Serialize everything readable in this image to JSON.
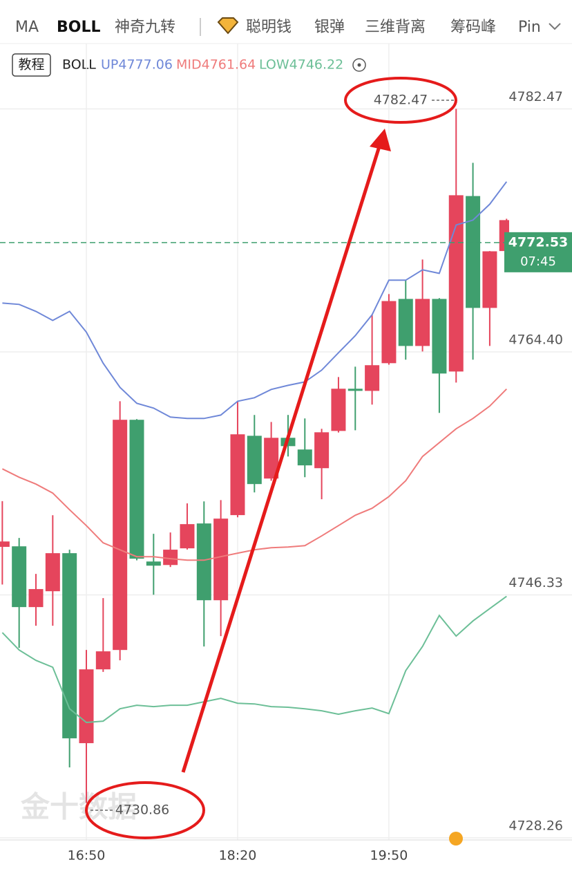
{
  "tabs": [
    "MA",
    "BOLL",
    "神奇九转",
    "聪明钱",
    "银弹",
    "三维背离",
    "筹码峰",
    "Pin"
  ],
  "indicator_row": {
    "tutorial": "教程",
    "indicator": "BOLL"
  },
  "chart_data": {
    "type": "candlestick",
    "categories": [
      null,
      null,
      null,
      null,
      null,
      "16:50",
      null,
      null,
      null,
      null,
      null,
      null,
      null,
      null,
      "18:20",
      null,
      null,
      null,
      null,
      null,
      null,
      null,
      null,
      "19:50",
      null,
      null,
      null,
      null,
      null,
      null,
      null
    ],
    "open": [
      4749.9,
      4749.94,
      4745.42,
      4746.6,
      4749.43,
      4735.3,
      4740.79,
      4742.23,
      4759.35,
      4748.81,
      4748.55,
      4749.79,
      4751.64,
      4745.93,
      4752.26,
      4758.16,
      4754.98,
      4758.01,
      4757.14,
      4755.75,
      4758.52,
      4761.66,
      4761.5,
      4763.56,
      4768.34,
      4764.84,
      4768.34,
      4762.94,
      4775.99,
      4767.67,
      4771.9
    ],
    "high": [
      4753.3,
      4750.56,
      4747.89,
      4752.25,
      4749.69,
      4742.23,
      4746.09,
      4760.73,
      4759.4,
      4750.87,
      4750.97,
      4753.13,
      4753.28,
      4753.38,
      4760.73,
      4759.71,
      4759.19,
      4759.71,
      4759.45,
      4758.68,
      4762.53,
      4763.3,
      4767.16,
      4768.7,
      4769.73,
      4771.27,
      4768.4,
      4782.47,
      4778.46,
      4771.9,
      4774.3
    ],
    "low": [
      4747.1,
      4742.39,
      4744.03,
      4744.03,
      4733.5,
      4730.86,
      4740.6,
      4741.46,
      4748.9,
      4746.34,
      4748.4,
      4749.7,
      4742.49,
      4743.26,
      4752.1,
      4753.95,
      4754.82,
      4756.62,
      4755.08,
      4753.44,
      4758.4,
      4758.57,
      4760.48,
      4763.45,
      4763.82,
      4764.43,
      4759.86,
      4762.12,
      4763.82,
      4764.84,
      4771.9
    ],
    "close": [
      4750.3,
      4745.42,
      4746.76,
      4749.43,
      4735.66,
      4740.79,
      4742.13,
      4759.35,
      4749.02,
      4748.5,
      4749.69,
      4751.59,
      4745.93,
      4752.0,
      4758.27,
      4754.57,
      4758.01,
      4757.39,
      4755.96,
      4758.42,
      4761.66,
      4761.5,
      4763.41,
      4768.18,
      4764.84,
      4768.34,
      4762.79,
      4776.05,
      4767.67,
      4771.88,
      4774.2
    ],
    "up_color": "#e5455c",
    "down_color": "#3f9f6e",
    "series": [
      {
        "name": "UP4777.06",
        "color": "#6f88d8",
        "values": [
          4768.03,
          4767.93,
          4767.41,
          4766.74,
          4767.41,
          4765.87,
          4763.56,
          4761.76,
          4760.58,
          4760.22,
          4759.55,
          4759.45,
          4759.45,
          4759.7,
          4760.73,
          4760.99,
          4761.61,
          4761.91,
          4762.17,
          4763.04,
          4764.33,
          4765.61,
          4767.16,
          4769.73,
          4769.73,
          4770.5,
          4770.24,
          4773.84,
          4774.2,
          4775.38,
          4777.06
        ]
      },
      {
        "name": "MID4761.64",
        "color": "#ef7b7b",
        "values": [
          4755.7,
          4755.08,
          4754.57,
          4753.9,
          4752.66,
          4751.48,
          4750.2,
          4749.68,
          4749.17,
          4749.17,
          4749.02,
          4748.91,
          4748.91,
          4749.17,
          4749.43,
          4749.68,
          4749.84,
          4749.89,
          4749.99,
          4750.71,
          4751.48,
          4752.25,
          4752.77,
          4753.64,
          4754.82,
          4756.62,
          4757.65,
          4758.68,
          4759.45,
          4760.37,
          4761.64
        ]
      },
      {
        "name": "LOW4746.22",
        "color": "#6cbf97",
        "values": [
          4743.52,
          4742.23,
          4741.46,
          4740.95,
          4737.86,
          4736.84,
          4736.94,
          4737.86,
          4738.12,
          4738.02,
          4738.12,
          4738.12,
          4738.38,
          4738.63,
          4738.27,
          4738.22,
          4738.02,
          4737.97,
          4737.86,
          4737.71,
          4737.45,
          4737.71,
          4737.91,
          4737.5,
          4740.69,
          4742.49,
          4744.8,
          4743.26,
          4744.39,
          4745.31,
          4746.22
        ]
      }
    ],
    "ylim": [
      4728.1,
      4784.4
    ],
    "yticks": [
      4728.26,
      4746.33,
      {
        "value": 4764.4,
        "label": "4764.40"
      },
      4782.47
    ],
    "grid": true,
    "last_price": 4772.53,
    "last_price_color": "#3f9f6e",
    "countdown": "07:45",
    "annotations": [
      "4782.47",
      "4730.86"
    ],
    "watermark": "金十数据"
  }
}
